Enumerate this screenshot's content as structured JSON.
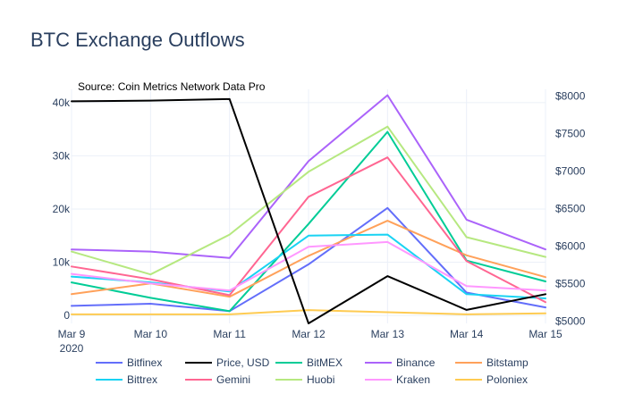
{
  "chart_data": {
    "type": "line",
    "title": "BTC Exchange Outflows",
    "annotation": "Source: Coin Metrics Network Data Pro",
    "categories": [
      "Mar 9",
      "Mar 10",
      "Mar 11",
      "Mar 12",
      "Mar 13",
      "Mar 14",
      "Mar 15"
    ],
    "x_tick_labels": [
      [
        "Mar 9",
        "2020"
      ],
      [
        "Mar 10"
      ],
      [
        "Mar 11"
      ],
      [
        "Mar 12"
      ],
      [
        "Mar 13"
      ],
      [
        "Mar 14"
      ],
      [
        "Mar 15"
      ]
    ],
    "y_left": {
      "range": [
        -1500,
        42500
      ],
      "ticks": [
        0,
        10000,
        20000,
        30000,
        40000
      ],
      "tick_labels": [
        "0",
        "10k",
        "20k",
        "30k",
        "40k"
      ]
    },
    "y_right": {
      "range": [
        4970,
        8090
      ],
      "ticks": [
        5000,
        5500,
        6000,
        6500,
        7000,
        7500,
        8000
      ],
      "tick_labels": [
        "$5000",
        "$5500",
        "$6000",
        "$6500",
        "$7000",
        "$7500",
        "$8000"
      ]
    },
    "grid": true,
    "legend_position": "bottom",
    "series": [
      {
        "name": "Bitfinex",
        "color": "#636efa",
        "axis": "left",
        "values": [
          1800,
          2200,
          800,
          9600,
          20200,
          4300,
          1500
        ]
      },
      {
        "name": "Price, USD",
        "color": "#000000",
        "axis": "right",
        "values": [
          7930,
          7940,
          7960,
          4970,
          5600,
          5150,
          5360
        ]
      },
      {
        "name": "BitMEX",
        "color": "#00cc96",
        "axis": "left",
        "values": [
          6200,
          3300,
          800,
          17200,
          34500,
          10300,
          6400
        ]
      },
      {
        "name": "Binance",
        "color": "#ab63fa",
        "axis": "left",
        "values": [
          12400,
          12000,
          10800,
          29000,
          41400,
          18000,
          12400
        ]
      },
      {
        "name": "Bitstamp",
        "color": "#ffa15a",
        "axis": "left",
        "values": [
          4000,
          6000,
          3500,
          11200,
          17800,
          11300,
          7200
        ]
      },
      {
        "name": "Bittrex",
        "color": "#19d3f3",
        "axis": "left",
        "values": [
          7300,
          6200,
          4500,
          15000,
          15200,
          4000,
          3200
        ]
      },
      {
        "name": "Gemini",
        "color": "#ff6692",
        "axis": "left",
        "values": [
          9200,
          6800,
          3800,
          22300,
          29700,
          10200,
          2500
        ]
      },
      {
        "name": "Huobi",
        "color": "#b6e880",
        "axis": "left",
        "values": [
          12000,
          7700,
          15200,
          27000,
          35500,
          14700,
          11000
        ]
      },
      {
        "name": "Kraken",
        "color": "#ff97ff",
        "axis": "left",
        "values": [
          7800,
          6000,
          4700,
          12900,
          13800,
          5500,
          4700
        ]
      },
      {
        "name": "Poloniex",
        "color": "#fecb52",
        "axis": "left",
        "values": [
          200,
          200,
          200,
          1000,
          600,
          200,
          400
        ]
      }
    ]
  }
}
